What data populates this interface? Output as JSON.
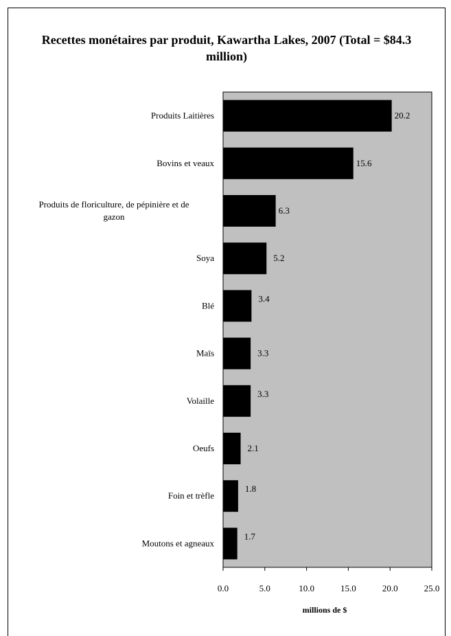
{
  "chart_data": {
    "type": "bar",
    "orientation": "horizontal",
    "title": "Recettes monétaires par produit, Kawartha Lakes, 2007 (Total = $84.3 million)",
    "xlabel": "millions de $",
    "ylabel": "",
    "xlim": [
      0,
      25
    ],
    "x_ticks": [
      "0.0",
      "5.0",
      "10.0",
      "15.0",
      "20.0",
      "25.0"
    ],
    "grid": false,
    "plot_background": "#c0c0c0",
    "bar_color": "#000000",
    "categories": [
      "Produits Laitières",
      "Bovins et veaux",
      [
        "Produits de floriculture, de pépinière et de",
        "gazon"
      ],
      "Soya",
      "Blé",
      "Maïs",
      "Volaille",
      "Oeufs",
      "Foin et trèfle",
      "Moutons et agneaux"
    ],
    "values": [
      20.2,
      15.6,
      6.3,
      5.2,
      3.4,
      3.3,
      3.3,
      2.1,
      1.8,
      1.7
    ],
    "value_labels": [
      "20.2",
      "15.6",
      "6.3",
      "5.2",
      "3.4",
      "3.3",
      "3.3",
      "2.1",
      "1.8",
      "1.7"
    ]
  }
}
